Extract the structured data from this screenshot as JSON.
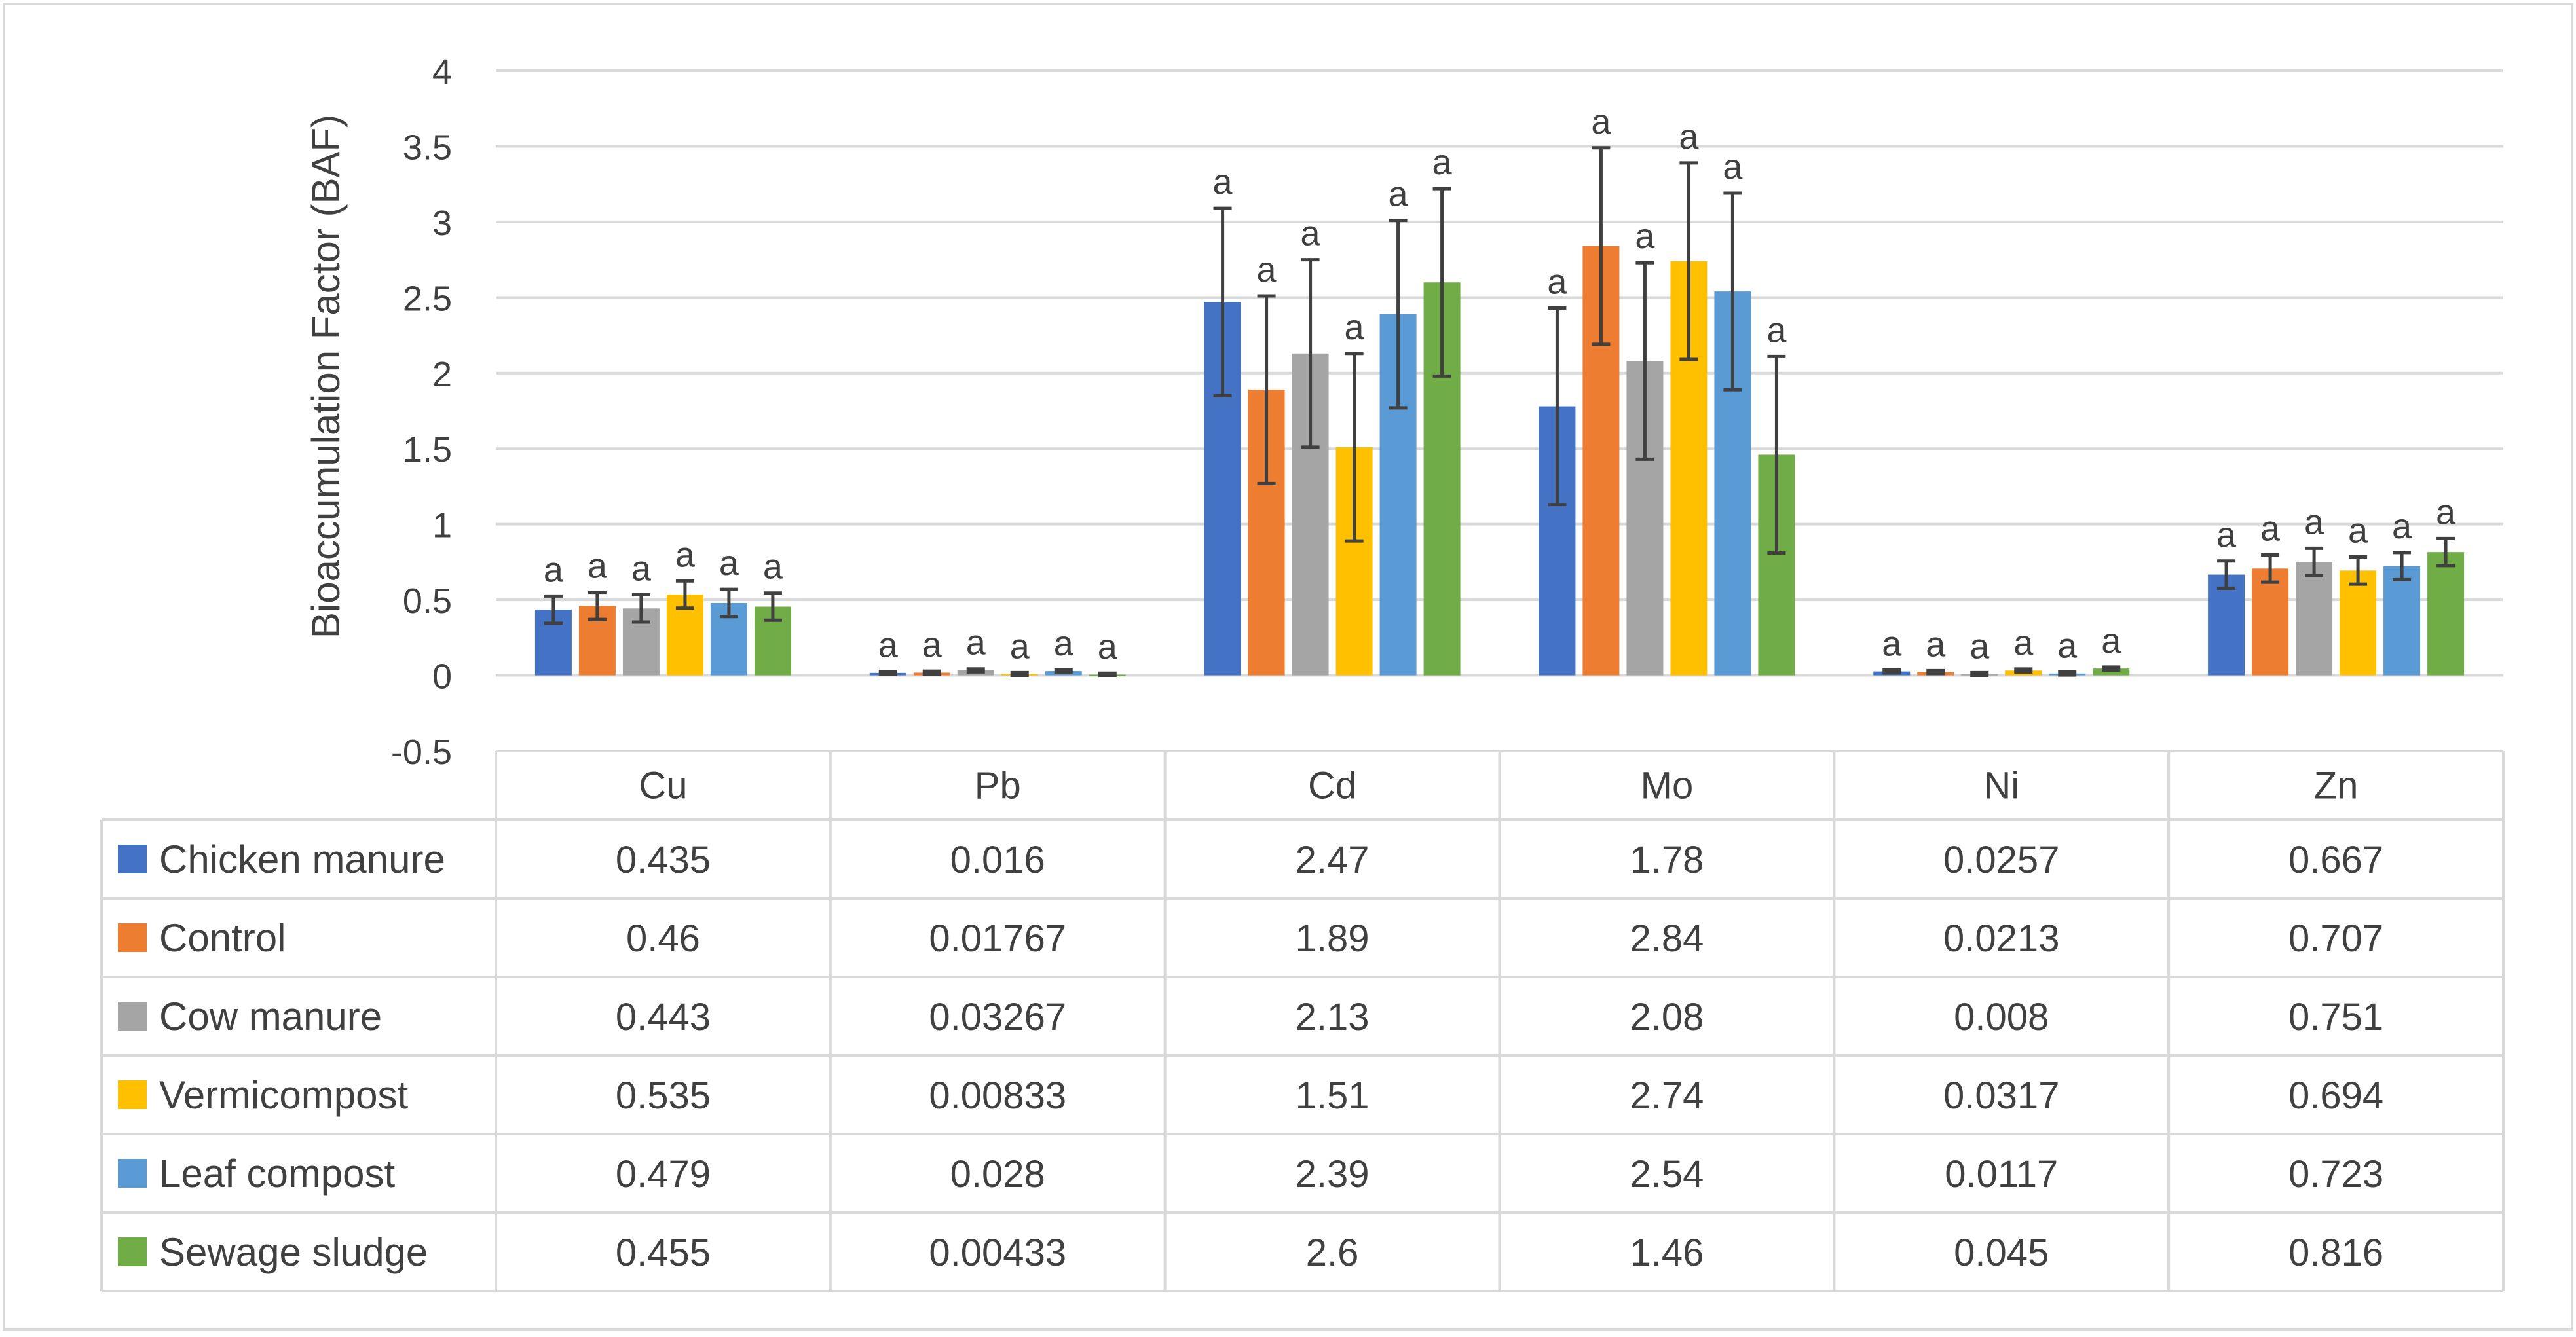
{
  "chart_data": {
    "type": "bar",
    "title": "",
    "xlabel": "",
    "ylabel": "Bioaccumulation Factor (BAF)",
    "ylim": [
      -0.5,
      4
    ],
    "yticks": [
      -0.5,
      0,
      0.5,
      1,
      1.5,
      2,
      2.5,
      3,
      3.5,
      4
    ],
    "ytick_labels": [
      "-0.5",
      "0",
      "0.5",
      "1",
      "1.5",
      "2",
      "2.5",
      "3",
      "3.5",
      "4"
    ],
    "grid": true,
    "legend": "data-table",
    "categories": [
      "Cu",
      "Pb",
      "Cd",
      "Mo",
      "Ni",
      "Zn"
    ],
    "series": [
      {
        "name": "Chicken manure",
        "color": "#4472C4",
        "values": [
          0.435,
          0.016,
          2.47,
          1.78,
          0.0257,
          0.667
        ],
        "labels": [
          "0.435",
          "0.016",
          "2.47",
          "1.78",
          "0.0257",
          "0.667"
        ],
        "errors": [
          0.09,
          0.01,
          0.62,
          0.65,
          0.01,
          0.09
        ],
        "letters": [
          "a",
          "a",
          "a",
          "a",
          "a",
          "a"
        ]
      },
      {
        "name": "Control",
        "color": "#ED7D31",
        "values": [
          0.46,
          0.01767,
          1.89,
          2.84,
          0.0213,
          0.707
        ],
        "labels": [
          "0.46",
          "0.01767",
          "1.89",
          "2.84",
          "0.0213",
          "0.707"
        ],
        "errors": [
          0.09,
          0.01,
          0.62,
          0.65,
          0.01,
          0.09
        ],
        "letters": [
          "a",
          "a",
          "a",
          "a",
          "a",
          "a"
        ]
      },
      {
        "name": "Cow manure",
        "color": "#A5A5A5",
        "values": [
          0.443,
          0.03267,
          2.13,
          2.08,
          0.008,
          0.751
        ],
        "labels": [
          "0.443",
          "0.03267",
          "2.13",
          "2.08",
          "0.008",
          "0.751"
        ],
        "errors": [
          0.09,
          0.01,
          0.62,
          0.65,
          0.01,
          0.09
        ],
        "letters": [
          "a",
          "a",
          "a",
          "a",
          "a",
          "a"
        ]
      },
      {
        "name": "Vermicompost",
        "color": "#FFC000",
        "values": [
          0.535,
          0.00833,
          1.51,
          2.74,
          0.0317,
          0.694
        ],
        "labels": [
          "0.535",
          "0.00833",
          "1.51",
          "2.74",
          "0.0317",
          "0.694"
        ],
        "errors": [
          0.09,
          0.01,
          0.62,
          0.65,
          0.01,
          0.09
        ],
        "letters": [
          "a",
          "a",
          "a",
          "a",
          "a",
          "a"
        ]
      },
      {
        "name": "Leaf compost",
        "color": "#5B9BD5",
        "values": [
          0.479,
          0.028,
          2.39,
          2.54,
          0.0117,
          0.723
        ],
        "labels": [
          "0.479",
          "0.028",
          "2.39",
          "2.54",
          "0.0117",
          "0.723"
        ],
        "errors": [
          0.09,
          0.01,
          0.62,
          0.65,
          0.01,
          0.09
        ],
        "letters": [
          "a",
          "a",
          "a",
          "a",
          "a",
          "a"
        ]
      },
      {
        "name": "Sewage sludge",
        "color": "#70AD47",
        "values": [
          0.455,
          0.00433,
          2.6,
          1.46,
          0.045,
          0.816
        ],
        "labels": [
          "0.455",
          "0.00433",
          "2.6",
          "1.46",
          "0.045",
          "0.816"
        ],
        "errors": [
          0.09,
          0.01,
          0.62,
          0.65,
          0.01,
          0.09
        ],
        "letters": [
          "a",
          "a",
          "a",
          "a",
          "a",
          "a"
        ]
      }
    ]
  }
}
